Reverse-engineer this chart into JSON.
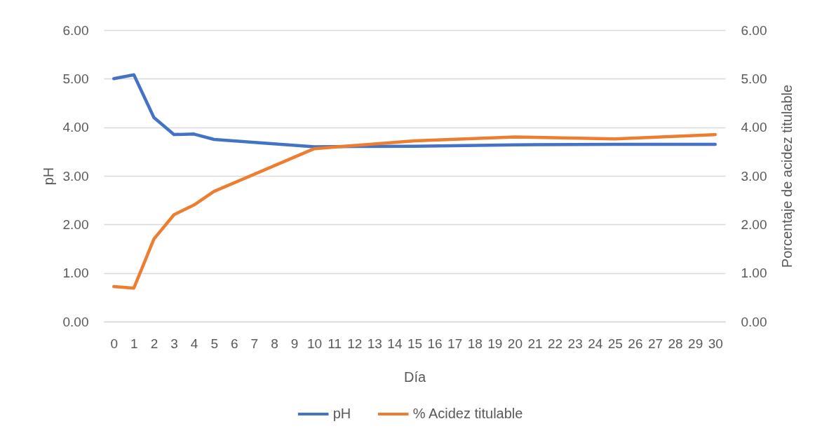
{
  "chart_data": {
    "type": "line",
    "xlabel": "Día",
    "ylabel": "pH",
    "y2label": "Porcentaje de acidez titulable",
    "x": [
      0,
      1,
      2,
      3,
      4,
      5,
      10,
      15,
      20,
      25,
      30
    ],
    "series": [
      {
        "name": "pH",
        "color": "#4472c4",
        "values": [
          5.0,
          5.08,
          4.2,
          3.85,
          3.86,
          3.75,
          3.6,
          3.61,
          3.64,
          3.65,
          3.65
        ]
      },
      {
        "name": "% Acidez titulable",
        "color": "#ed7d31",
        "axis": "y2",
        "values": [
          0.72,
          0.69,
          1.7,
          2.2,
          2.4,
          2.68,
          3.56,
          3.72,
          3.8,
          3.76,
          3.85
        ]
      }
    ],
    "xlim": [
      -0.5,
      30.5
    ],
    "xticks": [
      0,
      1,
      2,
      3,
      4,
      5,
      6,
      7,
      8,
      9,
      10,
      11,
      12,
      13,
      14,
      15,
      16,
      17,
      18,
      19,
      20,
      21,
      22,
      23,
      24,
      25,
      26,
      27,
      28,
      29,
      30
    ],
    "ylim": [
      0,
      6
    ],
    "yticks": [
      {
        "value": 0,
        "label": "0.00"
      },
      {
        "value": 1,
        "label": "1.00"
      },
      {
        "value": 2,
        "label": "2.00"
      },
      {
        "value": 3,
        "label": "3.00"
      },
      {
        "value": 4,
        "label": "4.00"
      },
      {
        "value": 5,
        "label": "5.00"
      },
      {
        "value": 6,
        "label": "6.00"
      }
    ],
    "y2lim": [
      0,
      6
    ],
    "y2ticks": [
      {
        "value": 0,
        "label": "0.00"
      },
      {
        "value": 1,
        "label": "1.00"
      },
      {
        "value": 2,
        "label": "2.00"
      },
      {
        "value": 3,
        "label": "3.00"
      },
      {
        "value": 4,
        "label": "4.00"
      },
      {
        "value": 5,
        "label": "5.00"
      },
      {
        "value": 6,
        "label": "6.00"
      }
    ],
    "grid": "y",
    "legend": "bottom"
  }
}
